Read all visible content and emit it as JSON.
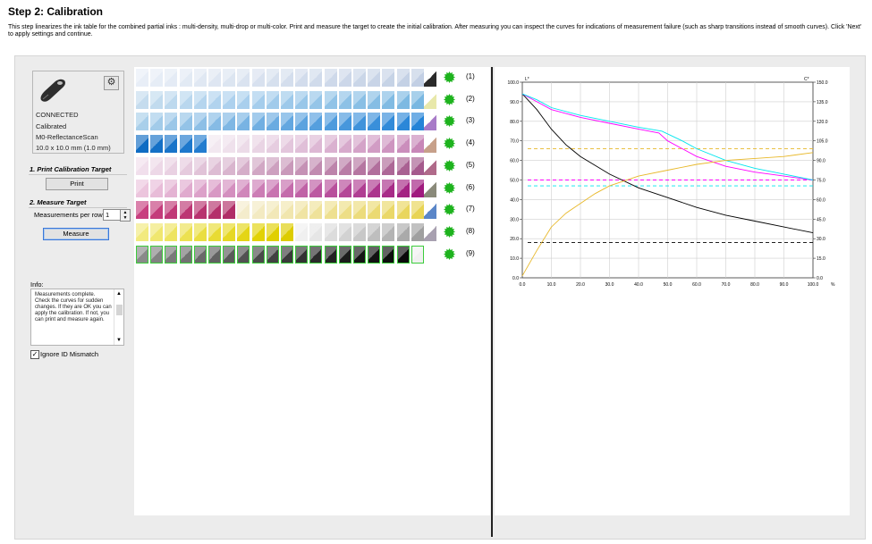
{
  "header": {
    "title": "Step 2: Calibration",
    "description": "This step linearizes the ink table for the combined partial inks : multi-density, multi-drop or multi-color.  Print and measure the target to create the initial calibration.  After measuring you can inspect the curves for indications of measurement failure (such as sharp transitions instead of smooth curves).  Click 'Next' to apply settings and continue."
  },
  "device": {
    "status": "CONNECTED",
    "calibration": "Calibrated",
    "mode": "M0-ReflectanceScan",
    "patch_size": "10.0 x 10.0 mm (1.0 mm)"
  },
  "sections": {
    "print_title": "1. Print Calibration Target",
    "print_button": "Print",
    "measure_title": "2. Measure Target",
    "measurements_label": "Measurements per row",
    "measurements_value": "1",
    "measure_button": "Measure"
  },
  "info": {
    "label": "Info:",
    "text": "Measurements complete. Check the curves for sudden changes. If they are OK you can apply the calibration. If not, you can print and measure again."
  },
  "ignore_id": {
    "label": "Ignore ID Mismatch",
    "checked": true
  },
  "target_rows": [
    {
      "label": "(1)",
      "color": "#c9dbee"
    },
    {
      "label": "(2)",
      "color": "#a8cde8"
    },
    {
      "label": "(3)",
      "color": "#8fc3e6"
    },
    {
      "label": "(4)",
      "color": "#e9c4e0"
    },
    {
      "label": "(5)",
      "color": "#e6b6d5"
    },
    {
      "label": "(6)",
      "color": "#da9fc8"
    },
    {
      "label": "(7)",
      "color": "#e8e79e"
    },
    {
      "label": "(8)",
      "color": "#e5d97a"
    },
    {
      "label": "(9)",
      "color": "#777777"
    }
  ],
  "chart_data": {
    "type": "line",
    "ylabel": "L*",
    "y2label": "C*",
    "x_unit": "%",
    "xlim": [
      0,
      100
    ],
    "ylim": [
      0,
      100
    ],
    "y2lim": [
      0,
      150
    ],
    "x_ticks": [
      "0.0",
      "10.0",
      "20.0",
      "30.0",
      "40.0",
      "50.0",
      "60.0",
      "70.0",
      "80.0",
      "90.0",
      "100.0"
    ],
    "y_ticks": [
      "0.0",
      "10.0",
      "20.0",
      "30.0",
      "40.0",
      "50.0",
      "60.0",
      "70.0",
      "80.0",
      "90.0",
      "100.0"
    ],
    "y2_ticks": [
      "0.0",
      "15.0",
      "30.0",
      "45.0",
      "60.0",
      "75.0",
      "90.0",
      "105.0",
      "120.0",
      "135.0",
      "150.0"
    ],
    "grid": true,
    "series": [
      {
        "color": "#000000",
        "points": [
          [
            0,
            94
          ],
          [
            5,
            86
          ],
          [
            10,
            76
          ],
          [
            15,
            68
          ],
          [
            20,
            62
          ],
          [
            30,
            53
          ],
          [
            40,
            46
          ],
          [
            50,
            41
          ],
          [
            60,
            36
          ],
          [
            70,
            32
          ],
          [
            80,
            29
          ],
          [
            90,
            26
          ],
          [
            100,
            23
          ]
        ]
      },
      {
        "color": "#ff00ff",
        "points": [
          [
            0,
            94
          ],
          [
            5,
            90
          ],
          [
            10,
            86
          ],
          [
            20,
            82
          ],
          [
            30,
            79
          ],
          [
            40,
            76
          ],
          [
            47,
            74
          ],
          [
            50,
            70
          ],
          [
            60,
            62
          ],
          [
            70,
            57
          ],
          [
            80,
            54
          ],
          [
            90,
            52
          ],
          [
            100,
            50
          ]
        ]
      },
      {
        "color": "#00e5ee",
        "points": [
          [
            0,
            94
          ],
          [
            5,
            91
          ],
          [
            10,
            87
          ],
          [
            20,
            83
          ],
          [
            30,
            80
          ],
          [
            40,
            77
          ],
          [
            48,
            75
          ],
          [
            55,
            70
          ],
          [
            60,
            66
          ],
          [
            70,
            60
          ],
          [
            80,
            56
          ],
          [
            90,
            53
          ],
          [
            100,
            50
          ]
        ]
      },
      {
        "color": "#e8b829",
        "points": [
          [
            0,
            1
          ],
          [
            5,
            14
          ],
          [
            10,
            26
          ],
          [
            15,
            33
          ],
          [
            20,
            38
          ],
          [
            25,
            43
          ],
          [
            30,
            47
          ],
          [
            40,
            52
          ],
          [
            50,
            55
          ],
          [
            60,
            58
          ],
          [
            70,
            60
          ],
          [
            80,
            61
          ],
          [
            90,
            62
          ],
          [
            100,
            64
          ]
        ]
      }
    ],
    "reference_lines": [
      {
        "color": "#e8b829",
        "y": 66
      },
      {
        "color": "#ff00ff",
        "y": 50
      },
      {
        "color": "#00e5ee",
        "y": 47
      },
      {
        "color": "#000000",
        "y": 18
      }
    ]
  }
}
